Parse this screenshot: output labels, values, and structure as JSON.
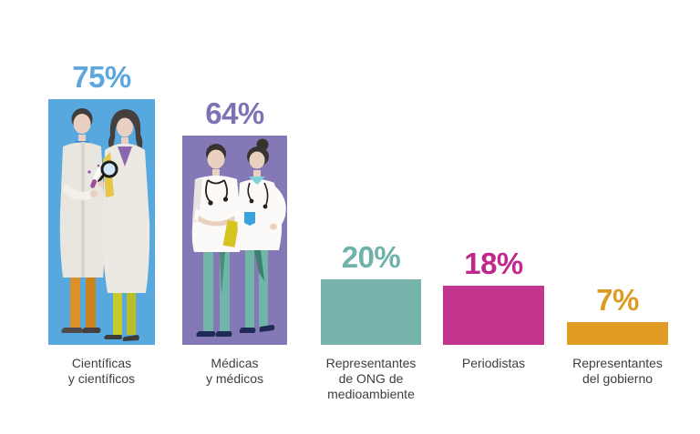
{
  "chart_data": {
    "type": "bar",
    "title": "",
    "categories": [
      "Científicas y científicos",
      "Médicas y médicos",
      "Representantes de ONG de medioambiente",
      "Periodistas",
      "Representantes del gobierno"
    ],
    "values": [
      75,
      64,
      20,
      18,
      7
    ],
    "value_labels": [
      "75%",
      "64%",
      "20%",
      "18%",
      "7%"
    ],
    "unit": "%",
    "ylim": [
      0,
      100
    ],
    "grid": false,
    "legend": false,
    "bar_colors": [
      "#58a8e0",
      "#8479b6",
      "#76b3aa",
      "#c2348e",
      "#e09c25"
    ],
    "value_label_colors": [
      "#5ba7de",
      "#7f72b3",
      "#6fb2a9",
      "#c0288c",
      "#dd9b26"
    ],
    "category_label_color": "#3e3d40"
  },
  "bars": [
    {
      "value_label": "75%",
      "category_lines": [
        "Científicas",
        "y científicos"
      ],
      "illustration": "scientists-illustration"
    },
    {
      "value_label": "64%",
      "category_lines": [
        "Médicas",
        "y médicos"
      ],
      "illustration": "doctors-illustration"
    },
    {
      "value_label": "20%",
      "category_lines": [
        "Representantes",
        "de ONG de",
        "medioambiente"
      ]
    },
    {
      "value_label": "18%",
      "category_lines": [
        "Periodistas"
      ]
    },
    {
      "value_label": "7%",
      "category_lines": [
        "Representantes",
        "del gobierno"
      ]
    }
  ],
  "illustration_colors": {
    "skin": "#ead0bf",
    "lab_coat": "#e9e6df",
    "scrub_white": "#fbfaf8",
    "scrub_pants_teal": "#6fb6a8",
    "pants_orange": "#db9029",
    "pants_yellow_green": "#c7cb30",
    "folder_yellow": "#d6c421",
    "pocket_blue": "#3aa3dd",
    "shoe_navy": "#1f2a56",
    "hair_dark": "#3b3633"
  }
}
